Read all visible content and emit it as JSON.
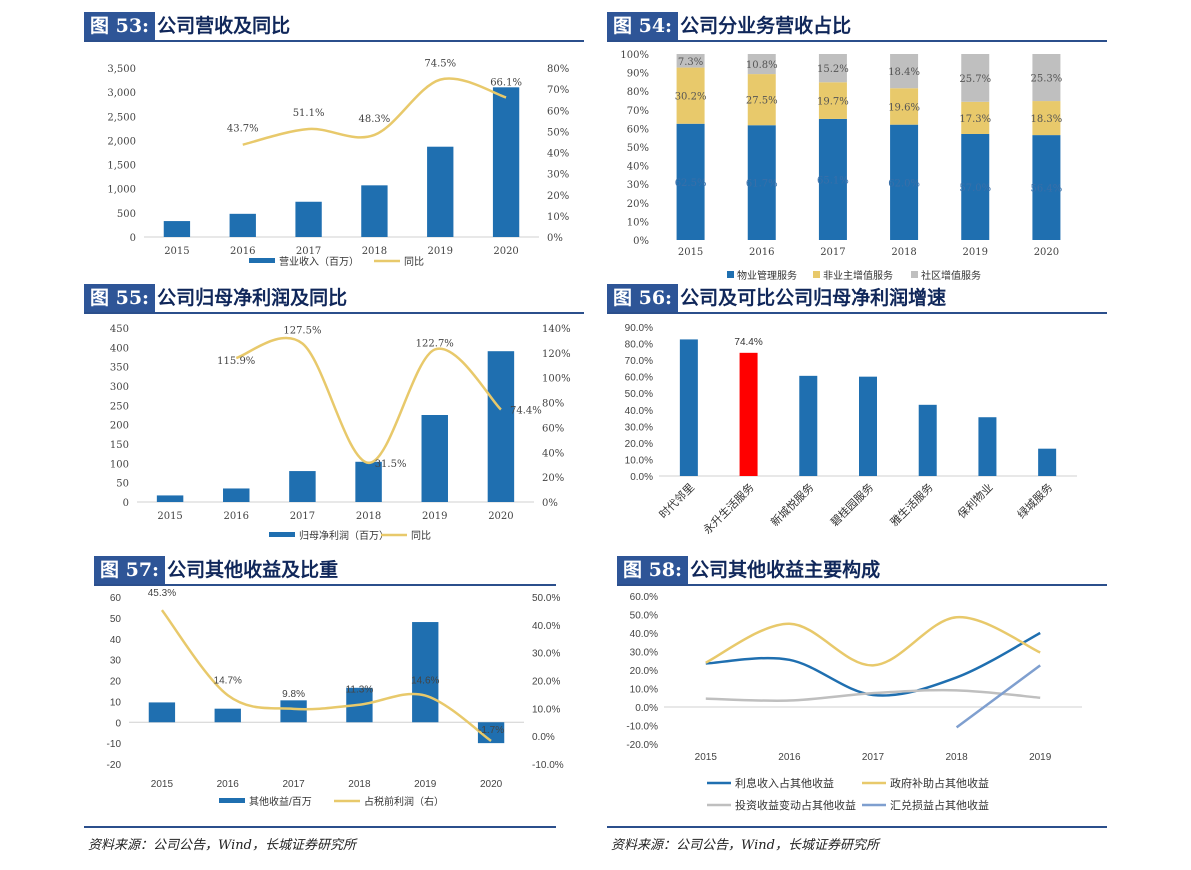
{
  "colors": {
    "bar": "#1f6fb0",
    "line": "#e8c96b",
    "red": "#ff0000",
    "gray": "#bfbfbf",
    "steel": "#7f9fcf"
  },
  "footnote": "资料来源：公司公告，Wind，长城证券研究所",
  "footnote_right": "资料来源：公司公告，Wind，长城证券研究所",
  "chart_data": [
    {
      "id": "c53",
      "type": "bar+line",
      "tag": "图 53:",
      "title": "公司营收及同比",
      "categories": [
        "2015",
        "2016",
        "2017",
        "2018",
        "2019",
        "2020"
      ],
      "y_ticks": [
        "0",
        "500",
        "1,000",
        "1,500",
        "2,000",
        "2,500",
        "3,000",
        "3,500"
      ],
      "y2_ticks": [
        "0%",
        "10%",
        "20%",
        "30%",
        "40%",
        "50%",
        "60%",
        "70%",
        "80%"
      ],
      "ylim": [
        0,
        3500
      ],
      "y2lim": [
        0,
        80
      ],
      "bars": {
        "name": "营业收入（百万）",
        "values": [
          330,
          480,
          730,
          1070,
          1870,
          3100
        ]
      },
      "line": {
        "name": "同比",
        "values": [
          null,
          43.7,
          51.1,
          48.3,
          74.5,
          66.1
        ],
        "labels": [
          "",
          "43.7%",
          "51.1%",
          "48.3%",
          "74.5%",
          "66.1%"
        ]
      }
    },
    {
      "id": "c54",
      "type": "stacked-bar-100",
      "tag": "图 54:",
      "title": "公司分业务营收占比",
      "categories": [
        "2015",
        "2016",
        "2017",
        "2018",
        "2019",
        "2020"
      ],
      "y_ticks": [
        "0%",
        "10%",
        "20%",
        "30%",
        "40%",
        "50%",
        "60%",
        "70%",
        "80%",
        "90%",
        "100%"
      ],
      "series": [
        {
          "name": "物业管理服务",
          "values": [
            62.5,
            61.7,
            65.1,
            62.0,
            57.0,
            56.4
          ],
          "labels": [
            "62.5%",
            "61.7%",
            "65.1%",
            "62.0%",
            "57.0%",
            "56.4%"
          ]
        },
        {
          "name": "非业主增值服务",
          "values": [
            30.2,
            27.5,
            19.7,
            19.6,
            17.3,
            18.3
          ],
          "labels": [
            "30.2%",
            "27.5%",
            "19.7%",
            "19.6%",
            "17.3%",
            "18.3%"
          ]
        },
        {
          "name": "社区增值服务",
          "values": [
            7.3,
            10.8,
            15.2,
            18.4,
            25.7,
            25.3
          ],
          "labels": [
            "7.3%",
            "10.8%",
            "15.2%",
            "18.4%",
            "25.7%",
            "25.3%"
          ]
        }
      ]
    },
    {
      "id": "c55",
      "type": "bar+line",
      "tag": "图 55:",
      "title": "公司归母净利润及同比",
      "categories": [
        "2015",
        "2016",
        "2017",
        "2018",
        "2019",
        "2020"
      ],
      "y_ticks": [
        "0",
        "50",
        "100",
        "150",
        "200",
        "250",
        "300",
        "350",
        "400",
        "450"
      ],
      "y2_ticks": [
        "0%",
        "20%",
        "40%",
        "60%",
        "80%",
        "100%",
        "120%",
        "140%"
      ],
      "ylim": [
        0,
        450
      ],
      "y2lim": [
        0,
        140
      ],
      "bars": {
        "name": "归母净利润（百万）",
        "values": [
          17,
          35,
          80,
          104,
          225,
          390
        ]
      },
      "line": {
        "name": "同比",
        "values": [
          null,
          115.9,
          127.5,
          31.5,
          122.7,
          74.4
        ],
        "labels": [
          "",
          "115.9%",
          "127.5%",
          "31.5%",
          "122.7%",
          "74.4%"
        ]
      }
    },
    {
      "id": "c56",
      "type": "bar",
      "tag": "图 56:",
      "title": "公司及可比公司归母净利润增速",
      "categories": [
        "时代邻里",
        "永升生活服务",
        "新城悦服务",
        "碧桂园服务",
        "雅生活服务",
        "保利物业",
        "绿城服务"
      ],
      "values": [
        82.5,
        74.4,
        60.5,
        60.0,
        43.0,
        35.5,
        16.5
      ],
      "value_label": "74.4%",
      "highlight_index": 1,
      "y_ticks": [
        "0.0%",
        "10.0%",
        "20.0%",
        "30.0%",
        "40.0%",
        "50.0%",
        "60.0%",
        "70.0%",
        "80.0%",
        "90.0%"
      ],
      "ylim": [
        0,
        90
      ]
    },
    {
      "id": "c57",
      "type": "bar+line",
      "tag": "图 57:",
      "title": "公司其他收益及比重",
      "categories": [
        "2015",
        "2016",
        "2017",
        "2018",
        "2019",
        "2020"
      ],
      "y_ticks": [
        "-20",
        "-10",
        "0",
        "10",
        "20",
        "30",
        "40",
        "50",
        "60"
      ],
      "y2_ticks": [
        "-10.0%",
        "0.0%",
        "10.0%",
        "20.0%",
        "30.0%",
        "40.0%",
        "50.0%"
      ],
      "ylim": [
        -20,
        60
      ],
      "y2lim": [
        -10,
        50
      ],
      "bars": {
        "name": "其他收益/百万",
        "values": [
          9.5,
          6.5,
          10.5,
          16.5,
          48,
          -10
        ]
      },
      "line": {
        "name": "占税前利润（右）",
        "values": [
          45.3,
          14.7,
          9.8,
          11.3,
          14.6,
          -1.7
        ],
        "labels": [
          "45.3%",
          "14.7%",
          "9.8%",
          "11.3%",
          "14.6%",
          "-1.7%"
        ]
      }
    },
    {
      "id": "c58",
      "type": "line",
      "tag": "图 58:",
      "title": "公司其他收益主要构成",
      "categories": [
        "2015",
        "2016",
        "2017",
        "2018",
        "2019"
      ],
      "y_ticks": [
        "-20.0%",
        "-10.0%",
        "0.0%",
        "10.0%",
        "20.0%",
        "30.0%",
        "40.0%",
        "50.0%",
        "60.0%"
      ],
      "ylim": [
        -20,
        60
      ],
      "series": [
        {
          "name": "利息收入占其他收益",
          "values": [
            23.5,
            25.5,
            6.5,
            16.0,
            40.0
          ]
        },
        {
          "name": "政府补助占其他收益",
          "values": [
            24.0,
            45.0,
            22.5,
            48.5,
            29.5
          ]
        },
        {
          "name": "投资收益变动占其他收益",
          "values": [
            4.5,
            3.5,
            7.5,
            9.0,
            5.0
          ]
        },
        {
          "name": "汇兑损益占其他收益",
          "values": [
            null,
            null,
            null,
            -11.0,
            22.5
          ]
        }
      ]
    }
  ]
}
